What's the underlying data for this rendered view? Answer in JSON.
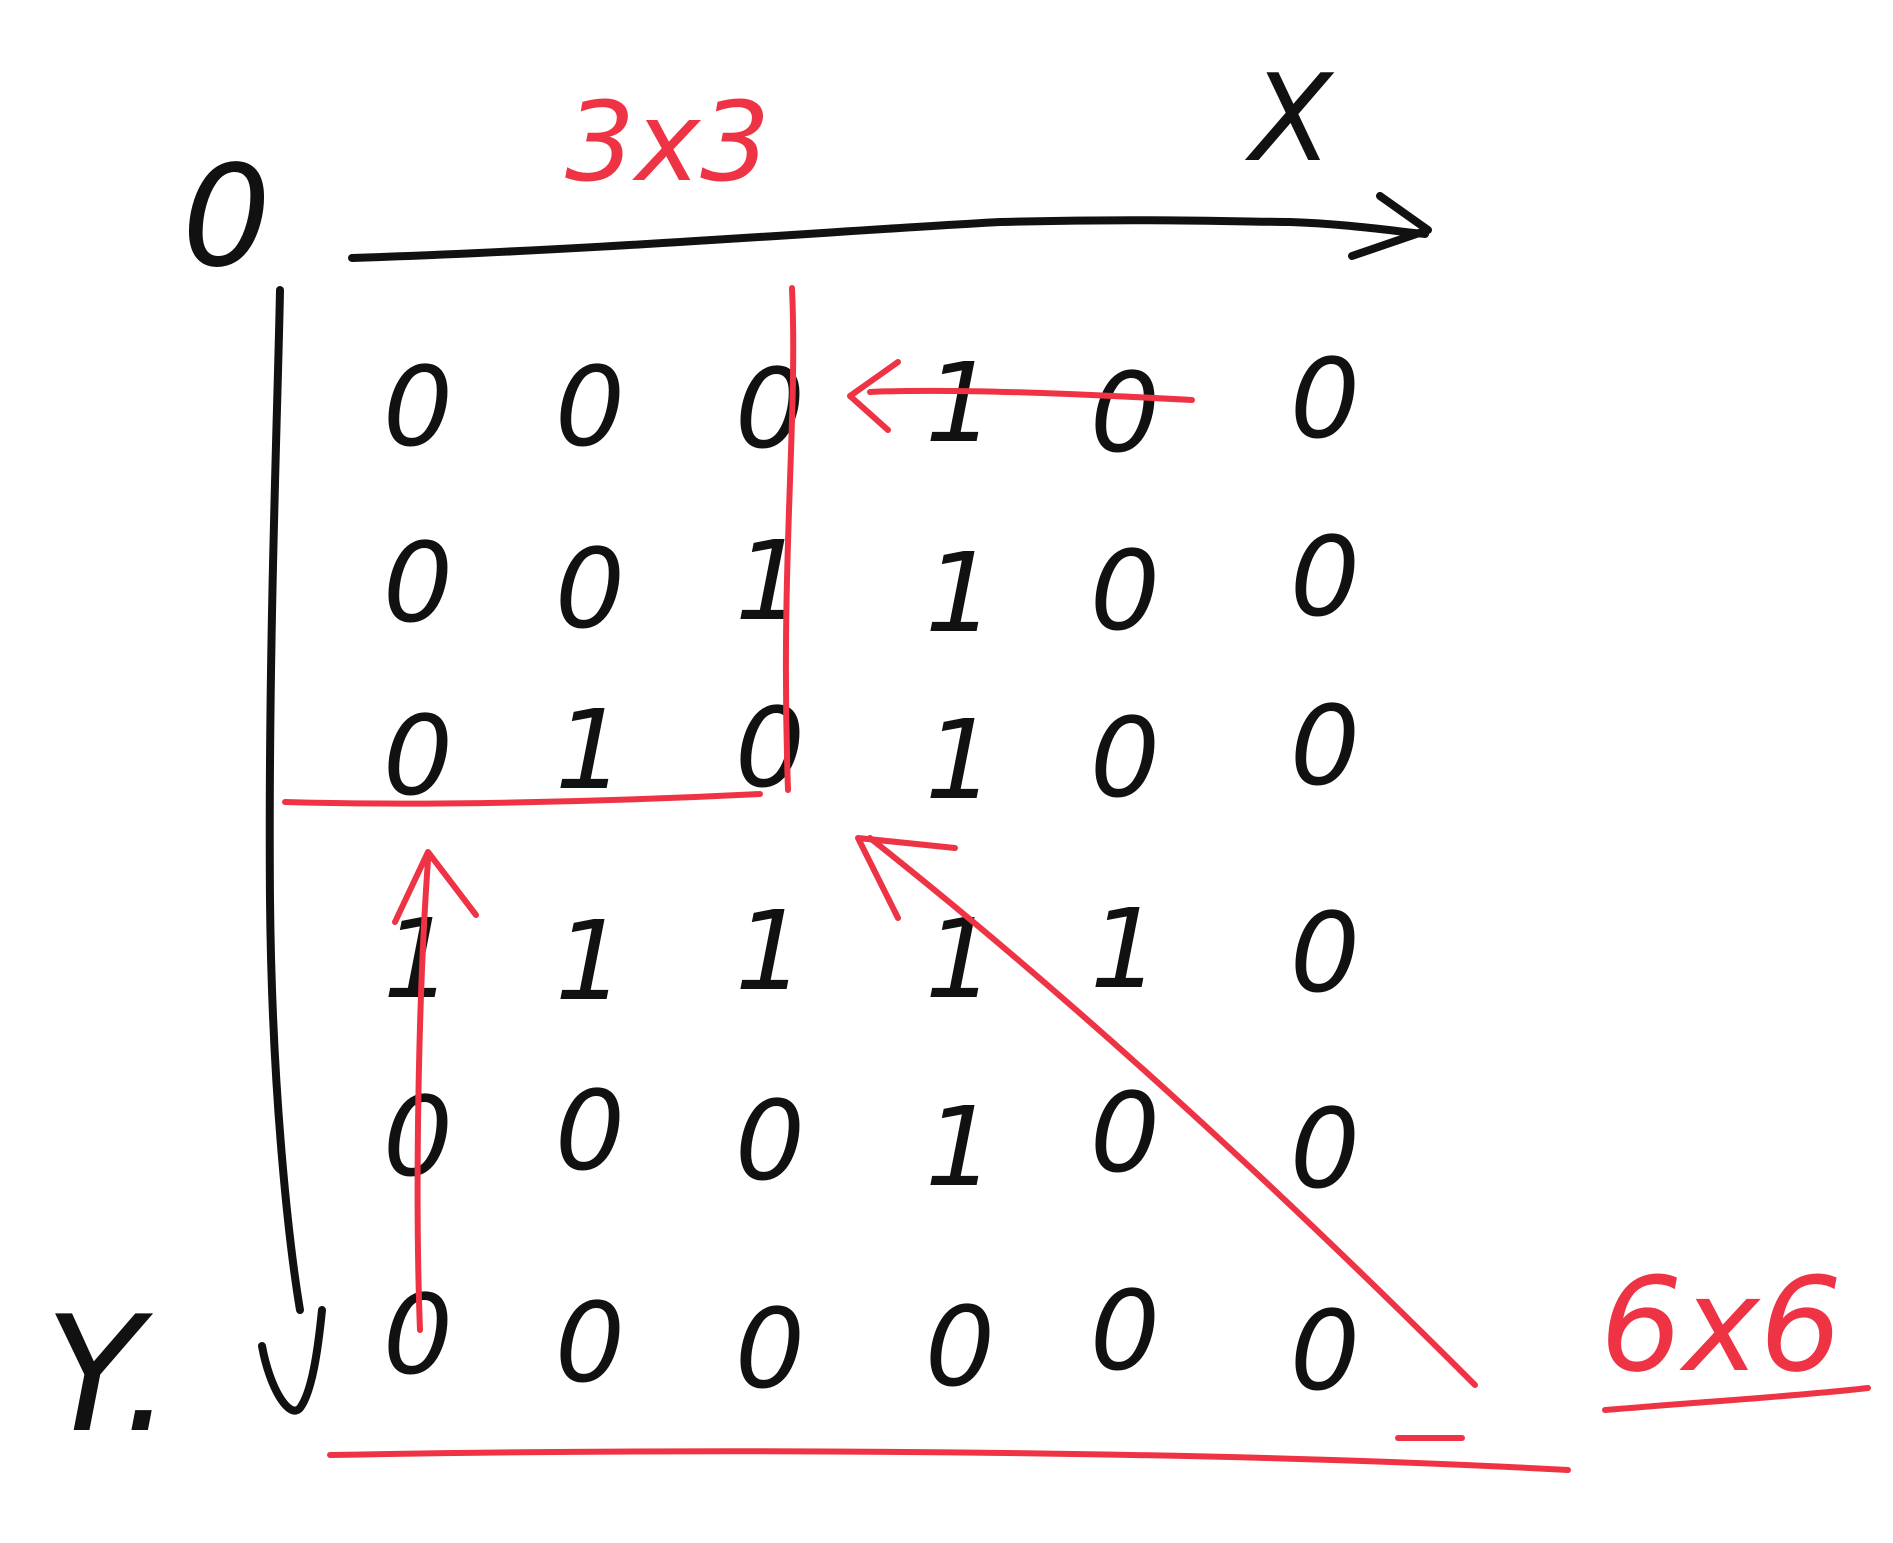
{
  "axes": {
    "origin_label": "0",
    "x_label": "X",
    "y_label": "Y."
  },
  "annotations": {
    "top_box_label": "3x3",
    "bottom_right_label": "6x6"
  },
  "grid": {
    "rows": [
      [
        "0",
        "0",
        "0",
        "1",
        "0",
        "0"
      ],
      [
        "0",
        "0",
        "1",
        "1",
        "0",
        "0"
      ],
      [
        "0",
        "1",
        "0",
        "1",
        "0",
        "0"
      ],
      [
        "1",
        "1",
        "1",
        "1",
        "1",
        "0"
      ],
      [
        "0",
        "0",
        "0",
        "1",
        "0",
        "0"
      ],
      [
        "0",
        "0",
        "0",
        "0",
        "0",
        "0"
      ]
    ]
  },
  "colors": {
    "ink": "#111111",
    "annotation_red": "#ee3344",
    "background": "#ffffff"
  }
}
